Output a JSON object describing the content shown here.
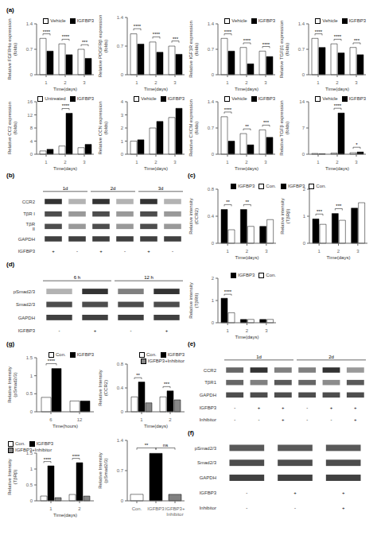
{
  "chart_data": [
    {
      "type": "bar",
      "title": "(a)",
      "categories": [
        "1",
        "2",
        "3"
      ],
      "xlabel": "Time(days)",
      "ylabel": "Relative FGFR4α expression\n(folds)",
      "series": [
        {
          "name": "Vehicle",
          "color": "white",
          "values": [
            1.0,
            0.85,
            0.7
          ]
        },
        {
          "name": "IGFBP3",
          "color": "black",
          "values": [
            0.65,
            0.55,
            0.45
          ]
        }
      ],
      "ylim": [
        0,
        1.4
      ],
      "yticks": [
        0,
        0.7,
        1.4
      ],
      "grid": false,
      "legend": "upper right",
      "significance": [
        "****",
        "****",
        "***"
      ]
    },
    {
      "type": "bar",
      "categories": [
        "1",
        "2",
        "3"
      ],
      "xlabel": "Time(days)",
      "ylabel": "Relative PDGFRβ expression\n(folds)",
      "series": [
        {
          "color": "white",
          "values": [
            1.0,
            0.8,
            0.7
          ]
        },
        {
          "color": "black",
          "values": [
            0.75,
            0.55,
            0.5
          ]
        }
      ],
      "ylim": [
        0,
        1.4
      ],
      "yticks": [
        0,
        0.7,
        1.4
      ],
      "grid": false,
      "significance": [
        "****",
        "****",
        "***"
      ]
    },
    {
      "type": "bar",
      "categories": [
        "1",
        "2",
        "3"
      ],
      "xlabel": "Time(days)",
      "ylabel": "Relative IGF1R expression\n(folds)",
      "series": [
        {
          "name": "Vehicle",
          "color": "white",
          "values": [
            1.0,
            0.75,
            0.65
          ]
        },
        {
          "name": "IGFBP3",
          "color": "black",
          "values": [
            0.65,
            0.3,
            0.5
          ]
        }
      ],
      "ylim": [
        0,
        1.4
      ],
      "yticks": [
        0,
        0.7,
        1.4
      ],
      "grid": false,
      "legend": "upper right",
      "significance": [
        "****",
        "****",
        "****"
      ]
    },
    {
      "type": "bar",
      "categories": [
        "1",
        "2",
        "3"
      ],
      "xlabel": "Time(days)",
      "ylabel": "Relative TGFβ1 expression\n(folds)",
      "series": [
        {
          "name": "Vehicle",
          "color": "white",
          "values": [
            1.0,
            0.85,
            0.75
          ]
        },
        {
          "name": "IGFBP3",
          "color": "black",
          "values": [
            0.75,
            0.6,
            0.55
          ]
        }
      ],
      "ylim": [
        0,
        1.4
      ],
      "yticks": [
        0,
        0.7,
        1.4
      ],
      "grid": false,
      "legend": "upper right",
      "significance": [
        "****",
        "****",
        "***"
      ]
    },
    {
      "type": "bar",
      "categories": [
        "1",
        "2",
        "3"
      ],
      "xlabel": "Time(days)",
      "ylabel": "Relative CC2 expression\n(folds)",
      "series": [
        {
          "name": "Untreated",
          "color": "white",
          "values": [
            1.0,
            2.5,
            2.0
          ]
        },
        {
          "name": "IGFBP3",
          "color": "black",
          "values": [
            1.5,
            12.5,
            3.0
          ]
        }
      ],
      "ylim": [
        0,
        16
      ],
      "yticks": [
        0,
        4,
        8,
        12,
        16
      ],
      "grid": false,
      "legend": "upper right",
      "significance": [
        null,
        "****",
        null
      ]
    },
    {
      "type": "bar",
      "categories": [
        "1",
        "2",
        "3"
      ],
      "xlabel": "Time(days)",
      "ylabel": "Relative CCN expression\n(folds)",
      "series": [
        {
          "name": "Vehicle",
          "color": "white",
          "values": [
            1.0,
            2.0,
            2.8
          ]
        },
        {
          "name": "IGFBP3",
          "color": "black",
          "values": [
            1.1,
            2.5,
            3.5
          ]
        }
      ],
      "ylim": [
        0,
        4
      ],
      "yticks": [
        0,
        1,
        2,
        3,
        4
      ],
      "grid": false,
      "legend": "upper right"
    },
    {
      "type": "bar",
      "categories": [
        "1",
        "2",
        "3"
      ],
      "xlabel": "Time(days)",
      "ylabel": "Relative CXCM expression\n(folds)",
      "series": [
        {
          "name": "Vehicle",
          "color": "white",
          "values": [
            1.0,
            0.55,
            0.65
          ]
        },
        {
          "name": "IGFBP3",
          "color": "black",
          "values": [
            0.35,
            0.25,
            0.45
          ]
        }
      ],
      "ylim": [
        0,
        1.4
      ],
      "yticks": [
        0,
        0.7,
        1.4
      ],
      "grid": false,
      "legend": "upper right",
      "significance": [
        "****",
        "**",
        "***"
      ]
    },
    {
      "type": "bar",
      "categories": [
        "1",
        "2",
        "3"
      ],
      "xlabel": "Time(days)",
      "ylabel": "Relative TGFβ expression\n(folds)",
      "series": [
        {
          "name": "Vehicle",
          "color": "white",
          "values": [
            0.2,
            0.3,
            0.4
          ]
        },
        {
          "name": "IGFBP3",
          "color": "black",
          "values": [
            0.1,
            11.0,
            0.6
          ]
        }
      ],
      "ylim": [
        0,
        14
      ],
      "yticks": [
        0,
        7,
        14
      ],
      "grid": false,
      "legend": "upper right",
      "significance": [
        null,
        "****",
        "*"
      ]
    },
    {
      "type": "blot",
      "title": "(b)",
      "timepoints": [
        "1d",
        "2d",
        "3d"
      ],
      "rows": [
        "CCR2",
        "TβR I",
        "TβR II",
        "GAPDH"
      ],
      "lane_rows": [
        {
          "name": "IGFBP3",
          "values": [
            "+",
            "-",
            "+",
            "-",
            "+",
            "-"
          ]
        }
      ],
      "cells": [
        [
          0.2,
          0.7,
          0.2,
          0.7,
          0.2,
          0.7
        ],
        [
          0.3,
          0.6,
          0.3,
          0.6,
          0.3,
          0.6
        ],
        [
          0.3,
          0.6,
          0.3,
          0.6,
          0.3,
          0.6
        ],
        [
          0.25,
          0.25,
          0.25,
          0.25,
          0.25,
          0.25
        ]
      ]
    },
    {
      "type": "bar",
      "title": "(c)",
      "categories": [
        "1",
        "2",
        "3"
      ],
      "xlabel": "Time(days)",
      "ylabel": "Relative intensity\n(CCR2)",
      "series": [
        {
          "name": "IGFBP3",
          "color": "black",
          "values": [
            0.5,
            0.5,
            0.25
          ]
        },
        {
          "name": "Con.",
          "color": "white",
          "values": [
            0.2,
            0.25,
            0.35
          ]
        }
      ],
      "ylim": [
        0,
        0.8
      ],
      "yticks": [
        0,
        0.4,
        0.8
      ],
      "grid": false,
      "legend": "upper right",
      "significance": [
        "**",
        "**",
        null
      ]
    },
    {
      "type": "bar",
      "categories": [
        "1",
        "2",
        "3"
      ],
      "xlabel": "Time(days)",
      "ylabel": "Relative intensity\n(TβRβ)",
      "series": [
        {
          "name": "IGFBP3",
          "color": "black",
          "values": [
            0.9,
            1.1,
            1.3
          ]
        },
        {
          "name": "Con.",
          "color": "white",
          "values": [
            0.7,
            0.85,
            1.5
          ]
        }
      ],
      "ylim": [
        0,
        2.0
      ],
      "yticks": [
        0,
        1,
        2
      ],
      "grid": false,
      "legend": "upper left",
      "significance": [
        "***",
        "***",
        null
      ]
    },
    {
      "type": "bar",
      "categories": [
        "1",
        "2",
        "3"
      ],
      "xlabel": "Time(days)",
      "ylabel": "Relative intensity\n(TβRII)",
      "series": [
        {
          "name": "IGFBP3",
          "color": "black",
          "values": [
            1.1,
            0.15,
            0.15
          ]
        },
        {
          "name": "Con.",
          "color": "white",
          "values": [
            0.45,
            0.15,
            0.15
          ]
        }
      ],
      "ylim": [
        0,
        2.0
      ],
      "yticks": [
        0,
        1,
        2
      ],
      "grid": false,
      "legend": "upper right",
      "significance": [
        "****",
        null,
        null
      ]
    },
    {
      "type": "blot",
      "title": "(d)",
      "timepoints": [
        "6 h",
        "12 h"
      ],
      "rows": [
        "pSmad2/3",
        "Smad2/3",
        "GAPDH"
      ],
      "lane_rows": [
        {
          "name": "IGFBP3",
          "values": [
            "-",
            "+",
            "-",
            "+"
          ]
        }
      ],
      "cells": [
        [
          0.7,
          0.2,
          0.5,
          0.2
        ],
        [
          0.3,
          0.3,
          0.3,
          0.3
        ],
        [
          0.25,
          0.25,
          0.25,
          0.25
        ]
      ]
    },
    {
      "type": "blot",
      "title": "(e)",
      "timepoints": [
        "1d",
        "2d"
      ],
      "rows": [
        "CCR2",
        "TβR1",
        "GAPDH"
      ],
      "lane_rows": [
        {
          "name": "IGFBP3",
          "values": [
            "-",
            "+",
            "+",
            "-",
            "+",
            "+"
          ]
        },
        {
          "name": "Inhibitor",
          "values": [
            "-",
            "-",
            "+",
            "-",
            "-",
            "+"
          ]
        }
      ],
      "cells": [
        [
          0.4,
          0.2,
          0.5,
          0.5,
          0.2,
          0.6
        ],
        [
          0.4,
          0.5,
          0.35,
          0.4,
          0.55,
          0.35
        ],
        [
          0.3,
          0.3,
          0.3,
          0.3,
          0.3,
          0.3
        ]
      ]
    },
    {
      "type": "blot",
      "title": "(f)",
      "rows": [
        "pSmad2/3",
        "Smad2/3",
        "GAPDH"
      ],
      "lane_rows": [
        {
          "name": "IGFBP3",
          "values": [
            "-",
            "+",
            "+"
          ]
        },
        {
          "name": "Inhibitor",
          "values": [
            "-",
            "-",
            "+"
          ]
        }
      ],
      "cells": [
        [
          0.35,
          0.35,
          0.35
        ],
        [
          0.3,
          0.3,
          0.3
        ],
        [
          0.25,
          0.25,
          0.25
        ]
      ]
    },
    {
      "type": "bar",
      "title": "(g)",
      "categories": [
        "6",
        "12"
      ],
      "xlabel": "Time(hours)",
      "ylabel": "Relative Intensity\n(pSmad2/3)",
      "series": [
        {
          "name": "Con.",
          "color": "white",
          "values": [
            0.4,
            0.3
          ]
        },
        {
          "name": "IGFBP3",
          "color": "black",
          "values": [
            1.2,
            0.3
          ]
        }
      ],
      "ylim": [
        0,
        1.5
      ],
      "yticks": [
        0,
        0.5,
        1,
        1.5
      ],
      "grid": false,
      "legend": "upper right",
      "significance": [
        "****",
        null
      ]
    },
    {
      "type": "bar",
      "categories": [
        "1",
        "2"
      ],
      "xlabel": "Time(days)",
      "ylabel": "Relative Intensity\n(CCR2)",
      "series": [
        {
          "name": "Con.",
          "color": "white",
          "values": [
            0.25,
            0.25
          ]
        },
        {
          "name": "IGFBP3",
          "color": "black",
          "values": [
            0.5,
            0.35
          ]
        },
        {
          "name": "IGFBP3+Inhibitor",
          "color": "#888888",
          "values": [
            0.15,
            0.2
          ]
        }
      ],
      "ylim": [
        0,
        0.8
      ],
      "yticks": [
        0,
        0.4,
        0.8
      ],
      "grid": false,
      "legend": "upper right",
      "significance": [
        "**",
        "***"
      ]
    },
    {
      "type": "bar",
      "categories": [
        "1",
        "2"
      ],
      "xlabel": "Time(days)",
      "ylabel": "Relative Intensity\n(TβRβ)",
      "series": [
        {
          "name": "Con.",
          "color": "white",
          "values": [
            0.15,
            0.2
          ]
        },
        {
          "name": "IGFBP3",
          "color": "black",
          "values": [
            1.1,
            1.2
          ]
        },
        {
          "name": "IGFBP3+Inhibitor",
          "color": "#888888",
          "values": [
            0.1,
            0.15
          ]
        }
      ],
      "ylim": [
        0,
        1.5
      ],
      "yticks": [
        0,
        0.5,
        1,
        1.5
      ],
      "grid": false,
      "legend": "upper left",
      "significance": [
        "****",
        "****"
      ]
    },
    {
      "type": "bar",
      "categories": [
        "Con.",
        "IGFBP3",
        "IGFBP3+\nInhibitor"
      ],
      "ylabel": "Relative Intensity\n(pSmad2/3)",
      "values": [
        0.15,
        1.1,
        0.15
      ],
      "colors": [
        "white",
        "black",
        "gray"
      ],
      "ylim": [
        0,
        1.4
      ],
      "yticks": [
        0,
        0.7,
        1.4
      ],
      "grid": false,
      "sig_pairs": [
        {
          "from": "Con.",
          "to": "IGFBP3",
          "label": "**"
        },
        {
          "from": "IGFBP3",
          "to": "IGFBP3+\nInhibitor",
          "label": "ns"
        }
      ]
    }
  ]
}
